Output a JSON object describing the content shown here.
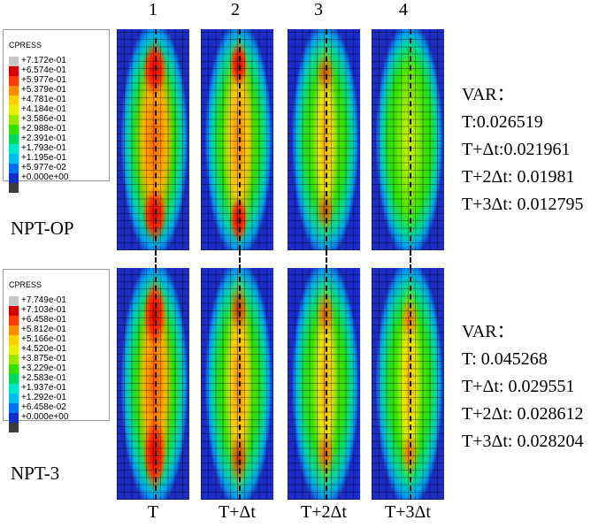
{
  "legend_top": {
    "title": "CPRESS",
    "values": [
      "+7.172e-01",
      "+6.574e-01",
      "+5.977e-01",
      "+5.379e-01",
      "+4.781e-01",
      "+4.184e-01",
      "+3.586e-01",
      "+2.988e-01",
      "+2.391e-01",
      "+1.793e-01",
      "+1.195e-01",
      "+5.977e-02",
      "+0.000e+00"
    ]
  },
  "legend_bottom": {
    "title": "CPRESS",
    "values": [
      "+7.749e-01",
      "+7.103e-01",
      "+6.458e-01",
      "+5.812e-01",
      "+5.166e-01",
      "+4.520e-01",
      "+3.875e-01",
      "+3.229e-01",
      "+2.583e-01",
      "+1.937e-01",
      "+1.292e-01",
      "+6.458e-02",
      "+0.000e+00"
    ]
  },
  "legend_colors": [
    "#c8c8c8",
    "#d40000",
    "#ff3c00",
    "#ff8c00",
    "#ffd000",
    "#e6f000",
    "#9ce600",
    "#34e000",
    "#00d860",
    "#00e6c8",
    "#00bcf0",
    "#0070f0",
    "#1430c8",
    "#3c3c3c"
  ],
  "row_labels": [
    "NPT-OP",
    "NPT-3"
  ],
  "column_numbers": [
    "1",
    "2",
    "3",
    "4"
  ],
  "column_labels": [
    "T",
    "T+Δt",
    "T+2Δt",
    "T+3Δt"
  ],
  "var_top": {
    "title": "VAR：",
    "lines": [
      "T:0.026519",
      "T+Δt:0.021961",
      "T+2Δt: 0.01981",
      "T+3Δt: 0.012795"
    ]
  },
  "var_bottom": {
    "title": "VAR：",
    "lines": [
      "T: 0.045268",
      "T+Δt: 0.029551",
      "T+2Δt: 0.028612",
      "T+3Δt: 0.028204"
    ]
  }
}
